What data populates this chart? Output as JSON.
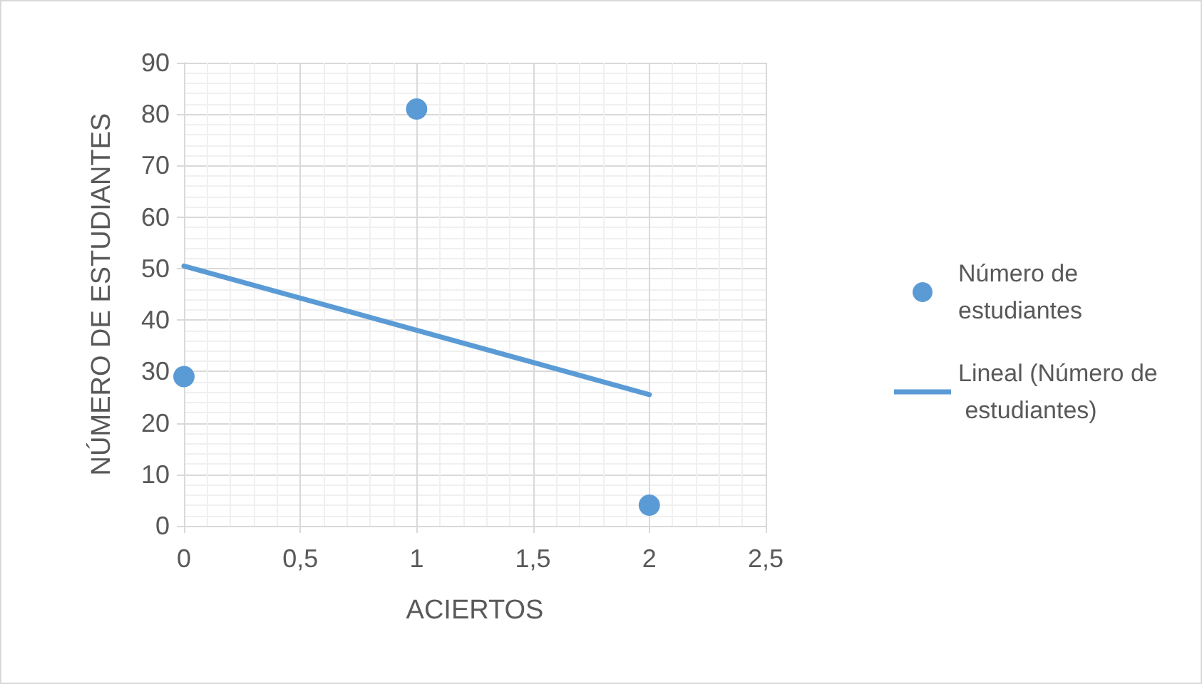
{
  "chart_data": {
    "type": "scatter",
    "xlabel": "ACIERTOS",
    "ylabel": "NÚMERO DE ESTUDIANTES",
    "series": [
      {
        "name": "Número de estudiantes",
        "color": "#5b9bd5",
        "x": [
          0,
          1,
          2
        ],
        "values": [
          29,
          81,
          4
        ],
        "marker": "circle"
      },
      {
        "name": "Lineal (Número de estudiantes)",
        "type": "line",
        "color": "#5b9bd5",
        "x": [
          0,
          2
        ],
        "values": [
          50.5,
          25.5
        ],
        "marker": "none",
        "line_style": "solid"
      }
    ],
    "xlim": [
      0,
      2.5
    ],
    "xticks": [
      {
        "value": 0,
        "label": "0"
      },
      {
        "value": 0.5,
        "label": "0,5"
      },
      {
        "value": 1,
        "label": "1"
      },
      {
        "value": 1.5,
        "label": "1,5"
      },
      {
        "value": 2,
        "label": "2"
      },
      {
        "value": 2.5,
        "label": "2,5"
      }
    ],
    "ylim": [
      0,
      90
    ],
    "yticks": [
      0,
      10,
      20,
      30,
      40,
      50,
      60,
      70,
      80,
      90
    ],
    "grid": true,
    "legend": "right"
  }
}
